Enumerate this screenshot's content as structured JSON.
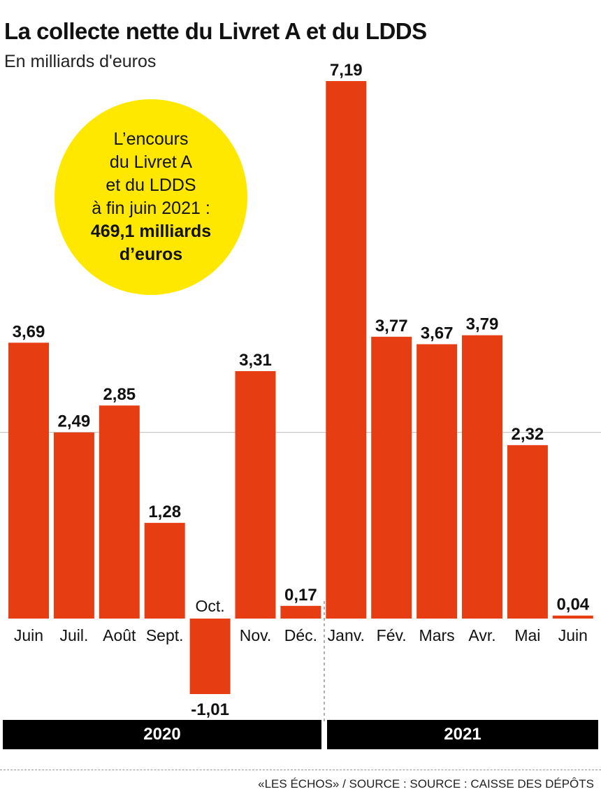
{
  "title": "La collecte nette du Livret A et du LDDS",
  "subtitle": "En milliards d'euros",
  "bubble": {
    "line1": "L’encours",
    "line2": "du Livret A",
    "line3": "et du LDDS",
    "line4": "à fin juin 2021 :",
    "line5": "469,1 milliards",
    "line6": "d’euros"
  },
  "years": [
    "2020",
    "2021"
  ],
  "source": "«LES ÉCHOS» / SOURCE : SOURCE : CAISSE DES DÉPÔTS",
  "colors": {
    "bar": "#e63d13",
    "bubble": "#ffe800",
    "year_band": "#000000"
  },
  "chart_data": {
    "type": "bar",
    "categories": [
      "Juin",
      "Juil.",
      "Août",
      "Sept.",
      "Oct.",
      "Nov.",
      "Déc.",
      "Janv.",
      "Fév.",
      "Mars",
      "Avr.",
      "Mai",
      "Juin"
    ],
    "values": [
      3.69,
      2.49,
      2.85,
      1.28,
      -1.01,
      3.31,
      0.17,
      7.19,
      3.77,
      3.67,
      3.79,
      2.32,
      0.04
    ],
    "value_labels": [
      "3,69",
      "2,49",
      "2,85",
      "1,28",
      "-1,01",
      "3,31",
      "0,17",
      "7,19",
      "3,77",
      "3,67",
      "3,79",
      "2,32",
      "0,04"
    ],
    "groups": [
      {
        "label": "2020",
        "start": 0,
        "end": 6
      },
      {
        "label": "2021",
        "start": 7,
        "end": 12
      }
    ],
    "title": "La collecte nette du Livret A et du LDDS",
    "ylabel": "En milliards d'euros",
    "ylim": [
      -1.01,
      7.19
    ],
    "reference_line": 2.49
  }
}
